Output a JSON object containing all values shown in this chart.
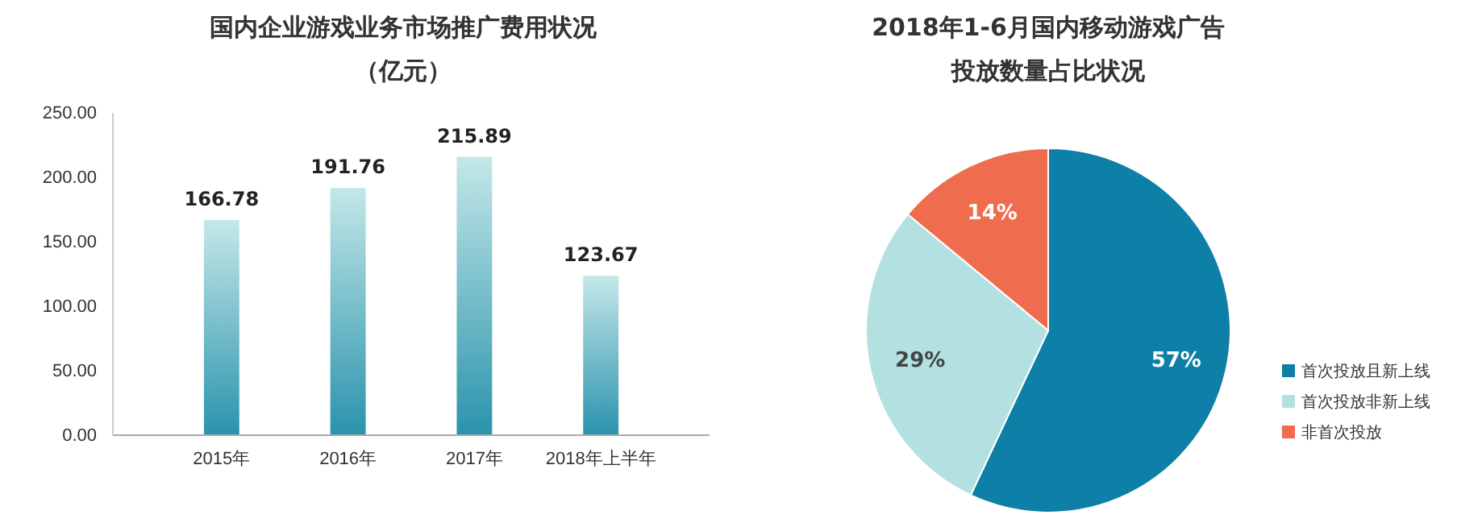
{
  "chart_data": [
    {
      "type": "bar",
      "title": "国内企业游戏业务市场推广费用状况",
      "subtitle": "（亿元）",
      "categories": [
        "2015年",
        "2016年",
        "2017年",
        "2018年上半年"
      ],
      "values": [
        166.78,
        191.76,
        215.89,
        123.67
      ],
      "color": "#2a93ad",
      "ylim": [
        0,
        250
      ],
      "yticks": [
        {
          "value": 0,
          "label": "0.00"
        },
        {
          "value": 50,
          "label": "50.00"
        },
        {
          "value": 100,
          "label": "100.00"
        },
        {
          "value": 150,
          "label": "150.00"
        },
        {
          "value": 200,
          "label": "200.00"
        },
        {
          "value": 250,
          "label": "250.00"
        }
      ],
      "grid": false,
      "data_labels": true
    },
    {
      "type": "pie",
      "title": "2018年1-6月国内移动游戏广告",
      "subtitle": "投放数量占比状况",
      "categories": [
        "首次投放且新上线",
        "首次投放非新上线",
        "非首次投放"
      ],
      "values": [
        57,
        29,
        14
      ],
      "colors": [
        "#0e7fa6",
        "#b3e1e1",
        "#f06c4e"
      ],
      "value_labels": [
        "57%",
        "29%",
        "14%"
      ],
      "legend": "right"
    }
  ]
}
